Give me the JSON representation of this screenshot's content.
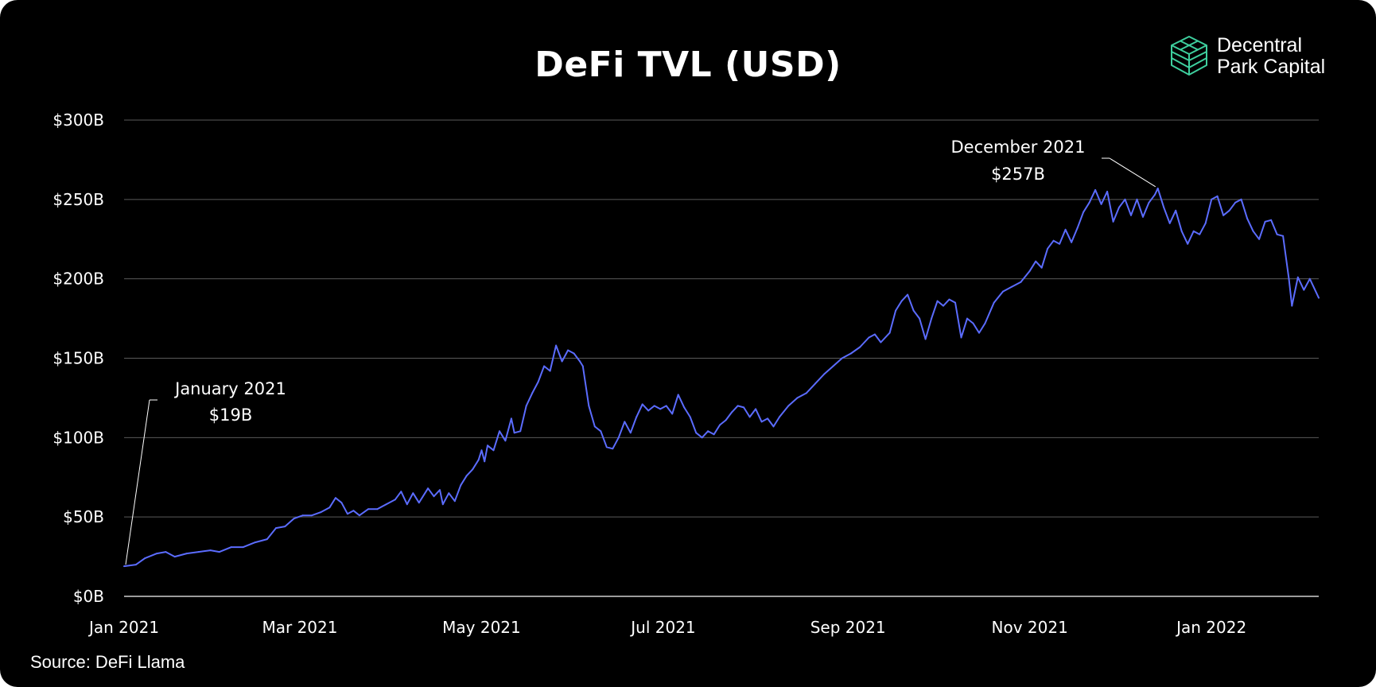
{
  "title": "DeFi TVL (USD)",
  "brand": {
    "line1": "Decentral",
    "line2": "Park Capital",
    "icon": "cube-stack-icon",
    "icon_color": "#3ecf9e"
  },
  "source": "Source: DeFi Llama",
  "colors": {
    "background": "#000000",
    "line": "#5b6cff",
    "grid": "#5a5a5a",
    "text": "#ffffff"
  },
  "chart_data": {
    "type": "line",
    "title": "DeFi TVL (USD)",
    "xlabel": "",
    "ylabel": "",
    "grid": true,
    "ylim": [
      0,
      300
    ],
    "xlim": [
      "2021-01-01",
      "2022-02-06"
    ],
    "y_ticks": [
      {
        "value": 0,
        "label": "$0B"
      },
      {
        "value": 50,
        "label": "$50B"
      },
      {
        "value": 100,
        "label": "$100B"
      },
      {
        "value": 150,
        "label": "$150B"
      },
      {
        "value": 200,
        "label": "$200B"
      },
      {
        "value": 250,
        "label": "$250B"
      },
      {
        "value": 300,
        "label": "$300B"
      }
    ],
    "x_ticks": [
      {
        "value": "2021-01-01",
        "label": "Jan 2021"
      },
      {
        "value": "2021-03-01",
        "label": "Mar 2021"
      },
      {
        "value": "2021-05-01",
        "label": "May 2021"
      },
      {
        "value": "2021-07-01",
        "label": "Jul 2021"
      },
      {
        "value": "2021-09-01",
        "label": "Sep 2021"
      },
      {
        "value": "2021-11-01",
        "label": "Nov 2021"
      },
      {
        "value": "2022-01-01",
        "label": "Jan 2022"
      }
    ],
    "annotations": [
      {
        "line1": "January 2021",
        "line2": "$19B",
        "x": "2021-01-01",
        "y": 19
      },
      {
        "line1": "December 2021",
        "line2": "$257B",
        "x": "2021-12-02",
        "y": 257
      }
    ],
    "series": [
      {
        "points": [
          [
            "2021-01-01",
            19
          ],
          [
            "2021-01-05",
            20
          ],
          [
            "2021-01-08",
            24
          ],
          [
            "2021-01-12",
            27
          ],
          [
            "2021-01-15",
            28
          ],
          [
            "2021-01-18",
            25
          ],
          [
            "2021-01-22",
            27
          ],
          [
            "2021-01-26",
            28
          ],
          [
            "2021-01-30",
            29
          ],
          [
            "2021-02-02",
            28
          ],
          [
            "2021-02-06",
            31
          ],
          [
            "2021-02-10",
            31
          ],
          [
            "2021-02-14",
            34
          ],
          [
            "2021-02-18",
            36
          ],
          [
            "2021-02-21",
            43
          ],
          [
            "2021-02-24",
            44
          ],
          [
            "2021-02-27",
            49
          ],
          [
            "2021-03-02",
            51
          ],
          [
            "2021-03-05",
            51
          ],
          [
            "2021-03-08",
            53
          ],
          [
            "2021-03-11",
            56
          ],
          [
            "2021-03-13",
            62
          ],
          [
            "2021-03-15",
            59
          ],
          [
            "2021-03-17",
            52
          ],
          [
            "2021-03-19",
            54
          ],
          [
            "2021-03-21",
            51
          ],
          [
            "2021-03-24",
            55
          ],
          [
            "2021-03-27",
            55
          ],
          [
            "2021-03-30",
            58
          ],
          [
            "2021-04-02",
            61
          ],
          [
            "2021-04-04",
            66
          ],
          [
            "2021-04-06",
            58
          ],
          [
            "2021-04-08",
            65
          ],
          [
            "2021-04-10",
            59
          ],
          [
            "2021-04-13",
            68
          ],
          [
            "2021-04-15",
            63
          ],
          [
            "2021-04-17",
            67
          ],
          [
            "2021-04-18",
            58
          ],
          [
            "2021-04-20",
            65
          ],
          [
            "2021-04-22",
            60
          ],
          [
            "2021-04-24",
            70
          ],
          [
            "2021-04-26",
            76
          ],
          [
            "2021-04-28",
            80
          ],
          [
            "2021-04-30",
            86
          ],
          [
            "2021-05-01",
            92
          ],
          [
            "2021-05-02",
            85
          ],
          [
            "2021-05-03",
            95
          ],
          [
            "2021-05-05",
            92
          ],
          [
            "2021-05-07",
            104
          ],
          [
            "2021-05-09",
            98
          ],
          [
            "2021-05-11",
            112
          ],
          [
            "2021-05-12",
            103
          ],
          [
            "2021-05-14",
            104
          ],
          [
            "2021-05-16",
            120
          ],
          [
            "2021-05-18",
            128
          ],
          [
            "2021-05-20",
            135
          ],
          [
            "2021-05-22",
            145
          ],
          [
            "2021-05-24",
            142
          ],
          [
            "2021-05-26",
            158
          ],
          [
            "2021-05-28",
            148
          ],
          [
            "2021-05-30",
            155
          ],
          [
            "2021-06-01",
            153
          ],
          [
            "2021-06-03",
            148
          ],
          [
            "2021-06-04",
            145
          ],
          [
            "2021-06-06",
            120
          ],
          [
            "2021-06-08",
            107
          ],
          [
            "2021-06-10",
            104
          ],
          [
            "2021-06-12",
            94
          ],
          [
            "2021-06-14",
            93
          ],
          [
            "2021-06-16",
            100
          ],
          [
            "2021-06-18",
            110
          ],
          [
            "2021-06-20",
            103
          ],
          [
            "2021-06-22",
            113
          ],
          [
            "2021-06-24",
            121
          ],
          [
            "2021-06-26",
            117
          ],
          [
            "2021-06-28",
            120
          ],
          [
            "2021-06-30",
            118
          ],
          [
            "2021-07-02",
            120
          ],
          [
            "2021-07-04",
            115
          ],
          [
            "2021-07-06",
            127
          ],
          [
            "2021-07-08",
            119
          ],
          [
            "2021-07-10",
            113
          ],
          [
            "2021-07-12",
            103
          ],
          [
            "2021-07-14",
            100
          ],
          [
            "2021-07-16",
            104
          ],
          [
            "2021-07-18",
            102
          ],
          [
            "2021-07-20",
            108
          ],
          [
            "2021-07-22",
            111
          ],
          [
            "2021-07-24",
            116
          ],
          [
            "2021-07-26",
            120
          ],
          [
            "2021-07-28",
            119
          ],
          [
            "2021-07-30",
            113
          ],
          [
            "2021-08-01",
            118
          ],
          [
            "2021-08-03",
            110
          ],
          [
            "2021-08-05",
            112
          ],
          [
            "2021-08-07",
            107
          ],
          [
            "2021-08-09",
            113
          ],
          [
            "2021-08-12",
            120
          ],
          [
            "2021-08-15",
            125
          ],
          [
            "2021-08-18",
            128
          ],
          [
            "2021-08-21",
            134
          ],
          [
            "2021-08-24",
            140
          ],
          [
            "2021-08-27",
            145
          ],
          [
            "2021-08-30",
            150
          ],
          [
            "2021-09-02",
            153
          ],
          [
            "2021-09-05",
            157
          ],
          [
            "2021-09-08",
            163
          ],
          [
            "2021-09-10",
            165
          ],
          [
            "2021-09-12",
            160
          ],
          [
            "2021-09-15",
            166
          ],
          [
            "2021-09-17",
            180
          ],
          [
            "2021-09-19",
            186
          ],
          [
            "2021-09-21",
            190
          ],
          [
            "2021-09-23",
            180
          ],
          [
            "2021-09-25",
            175
          ],
          [
            "2021-09-27",
            162
          ],
          [
            "2021-09-29",
            175
          ],
          [
            "2021-10-01",
            186
          ],
          [
            "2021-10-03",
            183
          ],
          [
            "2021-10-05",
            187
          ],
          [
            "2021-10-07",
            185
          ],
          [
            "2021-10-09",
            163
          ],
          [
            "2021-10-11",
            175
          ],
          [
            "2021-10-13",
            172
          ],
          [
            "2021-10-15",
            166
          ],
          [
            "2021-10-17",
            172
          ],
          [
            "2021-10-20",
            185
          ],
          [
            "2021-10-23",
            192
          ],
          [
            "2021-10-26",
            195
          ],
          [
            "2021-10-29",
            198
          ],
          [
            "2021-11-01",
            205
          ],
          [
            "2021-11-03",
            211
          ],
          [
            "2021-11-05",
            207
          ],
          [
            "2021-11-07",
            219
          ],
          [
            "2021-11-09",
            224
          ],
          [
            "2021-11-11",
            222
          ],
          [
            "2021-11-13",
            231
          ],
          [
            "2021-11-15",
            223
          ],
          [
            "2021-11-17",
            232
          ],
          [
            "2021-11-19",
            242
          ],
          [
            "2021-11-21",
            248
          ],
          [
            "2021-11-23",
            256
          ],
          [
            "2021-11-25",
            247
          ],
          [
            "2021-11-27",
            255
          ],
          [
            "2021-11-29",
            236
          ],
          [
            "2021-12-01",
            245
          ],
          [
            "2021-12-03",
            250
          ],
          [
            "2021-12-05",
            240
          ],
          [
            "2021-12-07",
            250
          ],
          [
            "2021-12-09",
            239
          ],
          [
            "2021-12-11",
            248
          ],
          [
            "2021-12-13",
            253
          ],
          [
            "2021-12-14",
            257
          ],
          [
            "2021-12-16",
            245
          ],
          [
            "2021-12-18",
            235
          ],
          [
            "2021-12-20",
            243
          ],
          [
            "2021-12-22",
            230
          ],
          [
            "2021-12-24",
            222
          ],
          [
            "2021-12-26",
            230
          ],
          [
            "2021-12-28",
            228
          ],
          [
            "2021-12-30",
            235
          ],
          [
            "2022-01-01",
            250
          ],
          [
            "2022-01-03",
            252
          ],
          [
            "2022-01-05",
            240
          ],
          [
            "2022-01-07",
            243
          ],
          [
            "2022-01-09",
            248
          ],
          [
            "2022-01-11",
            250
          ],
          [
            "2022-01-13",
            238
          ],
          [
            "2022-01-15",
            230
          ],
          [
            "2022-01-17",
            225
          ],
          [
            "2022-01-19",
            236
          ],
          [
            "2022-01-21",
            237
          ],
          [
            "2022-01-23",
            228
          ],
          [
            "2022-01-25",
            227
          ],
          [
            "2022-01-27",
            200
          ],
          [
            "2022-01-28",
            183
          ],
          [
            "2022-01-30",
            201
          ],
          [
            "2022-02-01",
            193
          ],
          [
            "2022-02-03",
            200
          ],
          [
            "2022-02-06",
            188
          ]
        ]
      }
    ]
  }
}
